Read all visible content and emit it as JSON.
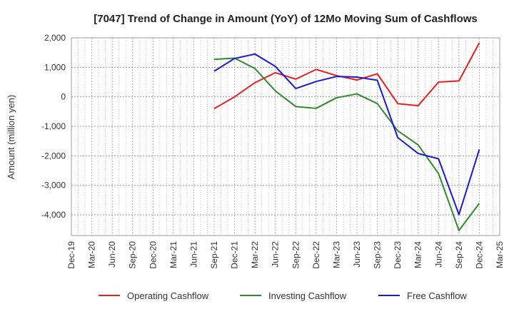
{
  "chart_data": {
    "type": "line",
    "title": "[7047]  Trend of Change in Amount (YoY) of 12Mo Moving Sum of Cashflows",
    "xlabel": "",
    "ylabel": "Amount (million yen)",
    "ylim": [
      -4700,
      2000
    ],
    "yticks": [
      2000,
      1000,
      0,
      -1000,
      -2000,
      -3000,
      -4000
    ],
    "ytick_labels": [
      "2,000",
      "1,000",
      "0",
      "-1,000",
      "-2,000",
      "-3,000",
      "-4,000"
    ],
    "categories": [
      "Dec-19",
      "Mar-20",
      "Jun-20",
      "Sep-20",
      "Dec-20",
      "Mar-21",
      "Jun-21",
      "Sep-21",
      "Dec-21",
      "Mar-22",
      "Jun-22",
      "Sep-22",
      "Dec-22",
      "Mar-23",
      "Jun-23",
      "Sep-23",
      "Dec-23",
      "Mar-24",
      "Jun-24",
      "Sep-24",
      "Dec-24",
      "Mar-25"
    ],
    "grid": true,
    "legend_position": "bottom",
    "series": [
      {
        "name": "Operating Cashflow",
        "color": "#e8201f",
        "values": [
          null,
          null,
          null,
          null,
          null,
          null,
          null,
          -400,
          0,
          480,
          820,
          600,
          930,
          720,
          570,
          780,
          -230,
          -300,
          500,
          540,
          1830,
          null
        ]
      },
      {
        "name": "Investing Cashflow",
        "color": "#2e8b2e",
        "values": [
          null,
          null,
          null,
          null,
          null,
          null,
          null,
          1270,
          1310,
          960,
          200,
          -330,
          -390,
          -30,
          100,
          -230,
          -1150,
          -1630,
          -2600,
          -4530,
          -3610,
          null
        ]
      },
      {
        "name": "Free Cashflow",
        "color": "#1a1ad6",
        "values": [
          null,
          null,
          null,
          null,
          null,
          null,
          null,
          870,
          1300,
          1450,
          1030,
          280,
          520,
          690,
          670,
          560,
          -1380,
          -1920,
          -2100,
          -3990,
          -1780,
          null
        ]
      }
    ]
  }
}
